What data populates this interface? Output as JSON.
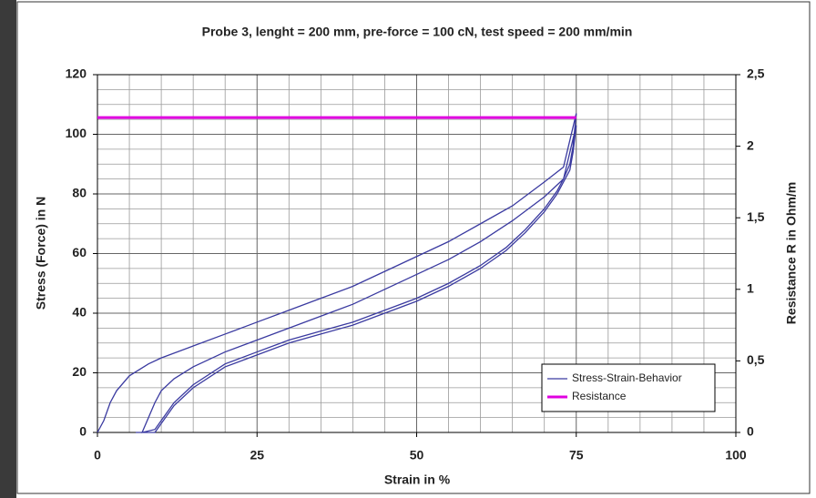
{
  "chart_data": {
    "type": "line",
    "title": "Probe 3, lenght = 200 mm, pre-force =  100 cN, test speed = 200 mm/min",
    "x_label": "Strain in %",
    "y_label": "Stress (Force) in N",
    "y2_label": "Resistance R in Ohm/m",
    "xlim": [
      0,
      100
    ],
    "xticks": [
      0,
      25,
      50,
      75,
      100
    ],
    "ylim": [
      0,
      120
    ],
    "yticks": [
      0,
      20,
      40,
      60,
      80,
      100,
      120
    ],
    "y2lim": [
      0,
      2.5
    ],
    "y2ticks": [
      0,
      {
        "value": 0.5,
        "label": "0,5"
      },
      1,
      {
        "value": 1.5,
        "label": "1,5"
      },
      2,
      {
        "value": 2.5,
        "label": "2,5"
      }
    ],
    "grid": true,
    "legend": "lower right",
    "series": [
      {
        "name": "Stress-Strain-Behavior",
        "color": "#3a3aa0",
        "x": [
          0,
          1,
          2,
          3,
          5,
          8,
          10,
          15,
          20,
          25,
          30,
          35,
          40,
          45,
          50,
          55,
          60,
          65,
          70,
          73,
          75,
          74.5,
          74,
          73,
          72,
          70,
          67,
          64,
          60,
          55,
          50,
          45,
          40,
          35,
          30,
          25,
          20,
          15,
          12,
          10,
          9,
          7,
          8,
          9,
          10,
          12,
          15,
          20,
          25,
          30,
          35,
          40,
          45,
          50,
          55,
          60,
          65,
          70,
          73,
          75,
          74.5,
          74,
          73,
          72,
          70,
          67,
          64,
          60,
          55,
          50,
          45,
          40,
          35,
          30,
          25,
          20,
          15,
          12,
          10,
          9,
          6
        ],
        "values": [
          0,
          4,
          10,
          14,
          19,
          23,
          25,
          29,
          33,
          37,
          41,
          45,
          49,
          54,
          59,
          64,
          70,
          76,
          84,
          89,
          107,
          96,
          90,
          85,
          81,
          75,
          68,
          62,
          56,
          50,
          45,
          41,
          37,
          34,
          31,
          27,
          23,
          16,
          10,
          4,
          1,
          0,
          5,
          10,
          14,
          18,
          22,
          27,
          31,
          35,
          39,
          43,
          48,
          53,
          58,
          64,
          71,
          79,
          85,
          103,
          94,
          88,
          84,
          80,
          74,
          67,
          61,
          55,
          49,
          44,
          40,
          36,
          33,
          30,
          26,
          22,
          15,
          9,
          3,
          0,
          0
        ]
      },
      {
        "name": "Resistance",
        "color": "#e000e0",
        "axis": "y2",
        "x": [
          0,
          75
        ],
        "values": [
          2.2,
          2.2
        ]
      }
    ]
  }
}
